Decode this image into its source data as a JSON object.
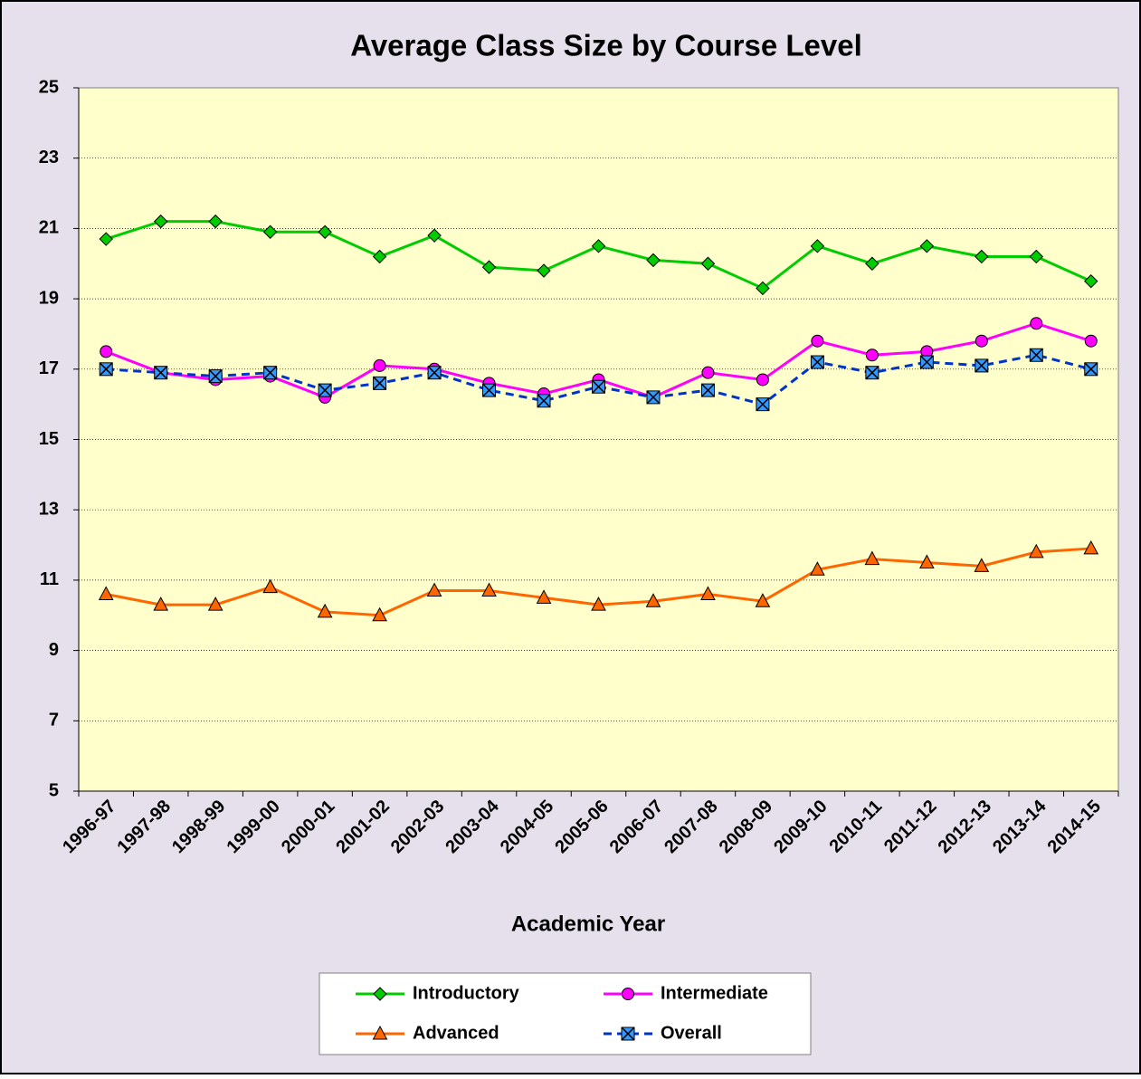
{
  "chart_data": {
    "type": "line",
    "title": "Average Class Size by Course Level",
    "x_label": "Academic Year",
    "categories": [
      "1996-97",
      "1997-98",
      "1998-99",
      "1999-00",
      "2000-01",
      "2001-02",
      "2002-03",
      "2003-04",
      "2004-05",
      "2005-06",
      "2006-07",
      "2007-08",
      "2008-09",
      "2009-10",
      "2010-11",
      "2011-12",
      "2012-13",
      "2013-14",
      "2014-15"
    ],
    "series": [
      {
        "name": "Introductory",
        "color": "#00cc00",
        "marker": "diamond",
        "marker_color": "#00cc00",
        "dashed": false,
        "values": [
          20.7,
          21.2,
          21.2,
          20.9,
          20.9,
          20.2,
          20.8,
          19.9,
          19.8,
          20.5,
          20.1,
          20.0,
          19.3,
          20.5,
          20.0,
          20.5,
          20.2,
          20.2,
          19.5
        ]
      },
      {
        "name": "Intermediate",
        "color": "#ff00ff",
        "marker": "circle",
        "marker_color": "#ff00ff",
        "dashed": false,
        "values": [
          17.5,
          16.9,
          16.7,
          16.8,
          16.2,
          17.1,
          17.0,
          16.6,
          16.3,
          16.7,
          16.2,
          16.9,
          16.7,
          17.8,
          17.4,
          17.5,
          17.8,
          18.3,
          17.8
        ]
      },
      {
        "name": "Advanced",
        "color": "#ff6600",
        "marker": "triangle",
        "marker_color": "#ff6600",
        "dashed": false,
        "values": [
          10.6,
          10.3,
          10.3,
          10.8,
          10.1,
          10.0,
          10.7,
          10.7,
          10.5,
          10.3,
          10.4,
          10.6,
          10.4,
          11.3,
          11.6,
          11.5,
          11.4,
          11.8,
          11.9
        ]
      },
      {
        "name": "Overall",
        "color": "#0033cc",
        "marker": "xsquare",
        "marker_color": "#3399ff",
        "dashed": true,
        "values": [
          17.0,
          16.9,
          16.8,
          16.9,
          16.4,
          16.6,
          16.9,
          16.4,
          16.1,
          16.5,
          16.2,
          16.4,
          16.0,
          17.2,
          16.9,
          17.2,
          17.1,
          17.4,
          17.0
        ]
      }
    ],
    "ylim": [
      5,
      25
    ],
    "yticks": [
      5,
      7,
      9,
      11,
      13,
      15,
      17,
      19,
      21,
      23,
      25
    ],
    "grid": true,
    "legend": "bottom",
    "plot_background": "#ffffcc",
    "background": "#e6e0ec"
  }
}
